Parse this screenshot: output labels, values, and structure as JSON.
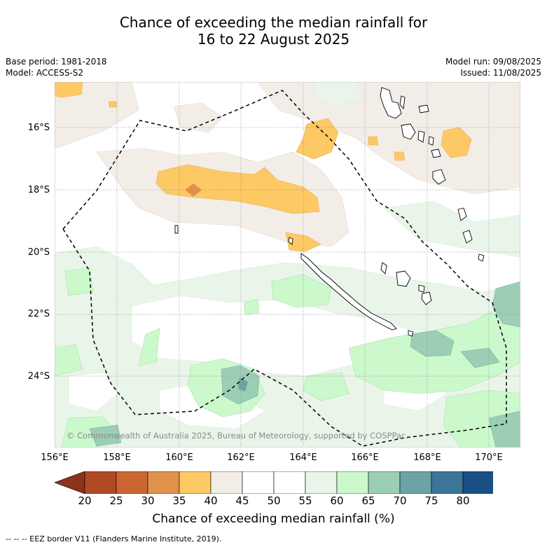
{
  "title_line1": "Chance of exceeding the median rainfall for",
  "title_line2": "16 to 22 August 2025",
  "base_period": "Base period: 1981-2018",
  "model": "Model: ACCESS-S2",
  "model_run": "Model run: 09/08/2025",
  "issued": "Issued: 11/08/2025",
  "copyright": "© Commonwealth of Australia 2025, Bureau of Meteorology, supported by COSPPac",
  "lat_labels": [
    "16°S",
    "18°S",
    "20°S",
    "22°S",
    "24°S"
  ],
  "lon_labels": [
    "156°E",
    "158°E",
    "160°E",
    "162°E",
    "164°E",
    "166°E",
    "168°E",
    "170°E"
  ],
  "colorbar": {
    "ticks": [
      "20",
      "25",
      "30",
      "35",
      "40",
      "45",
      "50",
      "55",
      "60",
      "65",
      "70",
      "75",
      "80"
    ],
    "colors": [
      "#8c3318",
      "#b04a25",
      "#cb6633",
      "#e0924a",
      "#fdc965",
      "#f3ede7",
      "#ffffff",
      "#ffffff",
      "#eaf5ea",
      "#ccf9cc",
      "#9cceb6",
      "#6ba3a6",
      "#3b7698",
      "#1a4f83",
      "#10457a"
    ],
    "label": "Chance of exceeding median rainfall (%)"
  },
  "legend_footer": "--  --  -- EEZ border V11 (Flanders Marine Institute, 2019)."
}
